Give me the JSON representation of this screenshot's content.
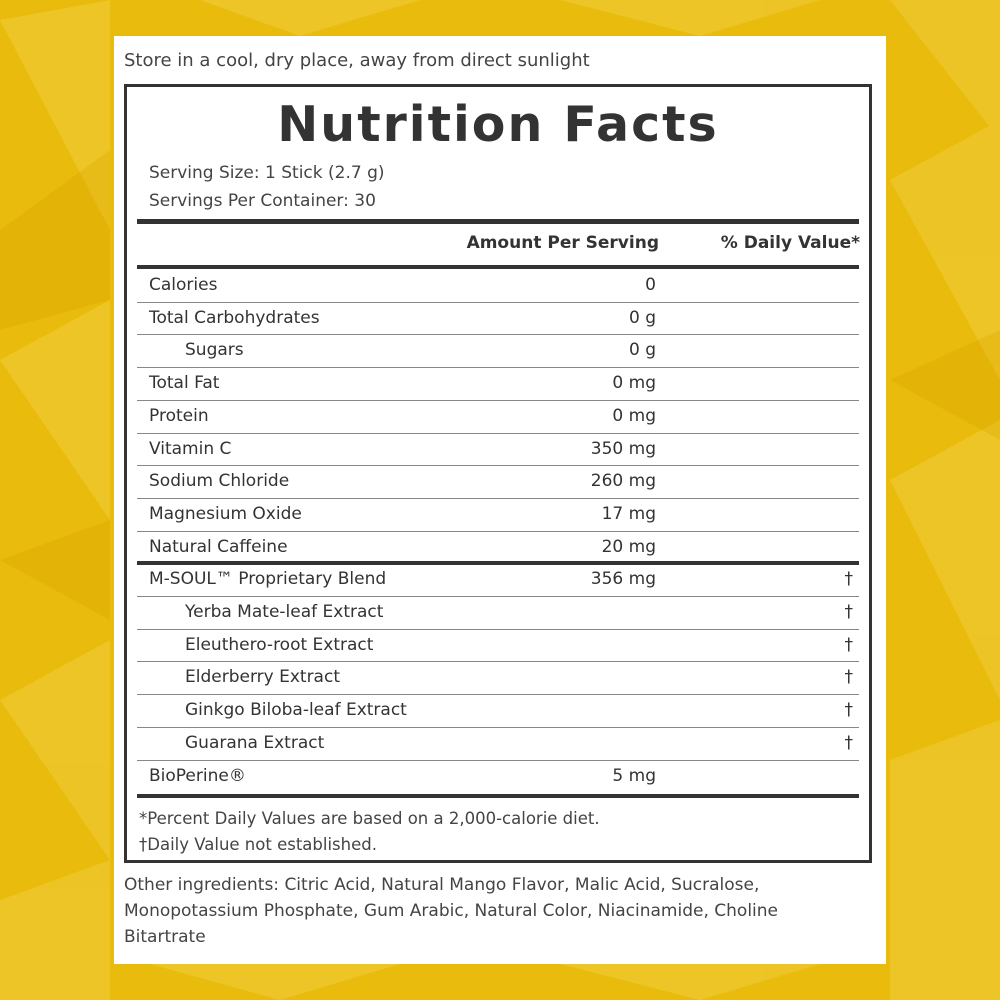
{
  "colors": {
    "background": "#e9bb0c",
    "card": "#ffffff",
    "ink": "#333333"
  },
  "storage_note": "Store in a cool, dry place, away from direct sunlight",
  "label": {
    "title": "Nutrition Facts",
    "serving_size": "Serving Size: 1 Stick (2.7 g)",
    "servings_per_container": "Servings Per Container: 30",
    "header_amount": "Amount Per Serving",
    "header_dv": "% Daily Value*",
    "rows": [
      {
        "name": "Calories",
        "amount": "0",
        "dv": ""
      },
      {
        "name": "Total Carbohydrates",
        "amount": "0 g",
        "dv": ""
      },
      {
        "name": "Sugars",
        "amount": "0 g",
        "dv": ""
      },
      {
        "name": "Total Fat",
        "amount": "0 mg",
        "dv": ""
      },
      {
        "name": "Protein",
        "amount": "0 mg",
        "dv": ""
      },
      {
        "name": "Vitamin C",
        "amount": "350 mg",
        "dv": ""
      },
      {
        "name": "Sodium Chloride",
        "amount": "260 mg",
        "dv": ""
      },
      {
        "name": "Magnesium Oxide",
        "amount": "17 mg",
        "dv": ""
      },
      {
        "name": "Natural Caffeine",
        "amount": "20 mg",
        "dv": ""
      },
      {
        "name": "M-SOUL™ Proprietary Blend",
        "amount": "356 mg",
        "dv": "†"
      },
      {
        "name": "Yerba Mate-leaf Extract",
        "amount": "",
        "dv": "†"
      },
      {
        "name": "Eleuthero-root Extract",
        "amount": "",
        "dv": "†"
      },
      {
        "name": "Elderberry Extract",
        "amount": "",
        "dv": "†"
      },
      {
        "name": "Ginkgo Biloba-leaf Extract",
        "amount": "",
        "dv": "†"
      },
      {
        "name": "Guarana Extract",
        "amount": "",
        "dv": "†"
      },
      {
        "name": "BioPerine®",
        "amount": "5 mg",
        "dv": ""
      }
    ],
    "footnote_dv": "*Percent Daily Values are based on a 2,000-calorie diet.",
    "footnote_dagger": "†Daily Value not established."
  },
  "other_ingredients": "Other ingredients: Citric Acid, Natural Mango Flavor, Malic Acid, Sucralose, Monopotassium Phosphate, Gum Arabic, Natural Color, Niacinamide, Choline Bitartrate"
}
